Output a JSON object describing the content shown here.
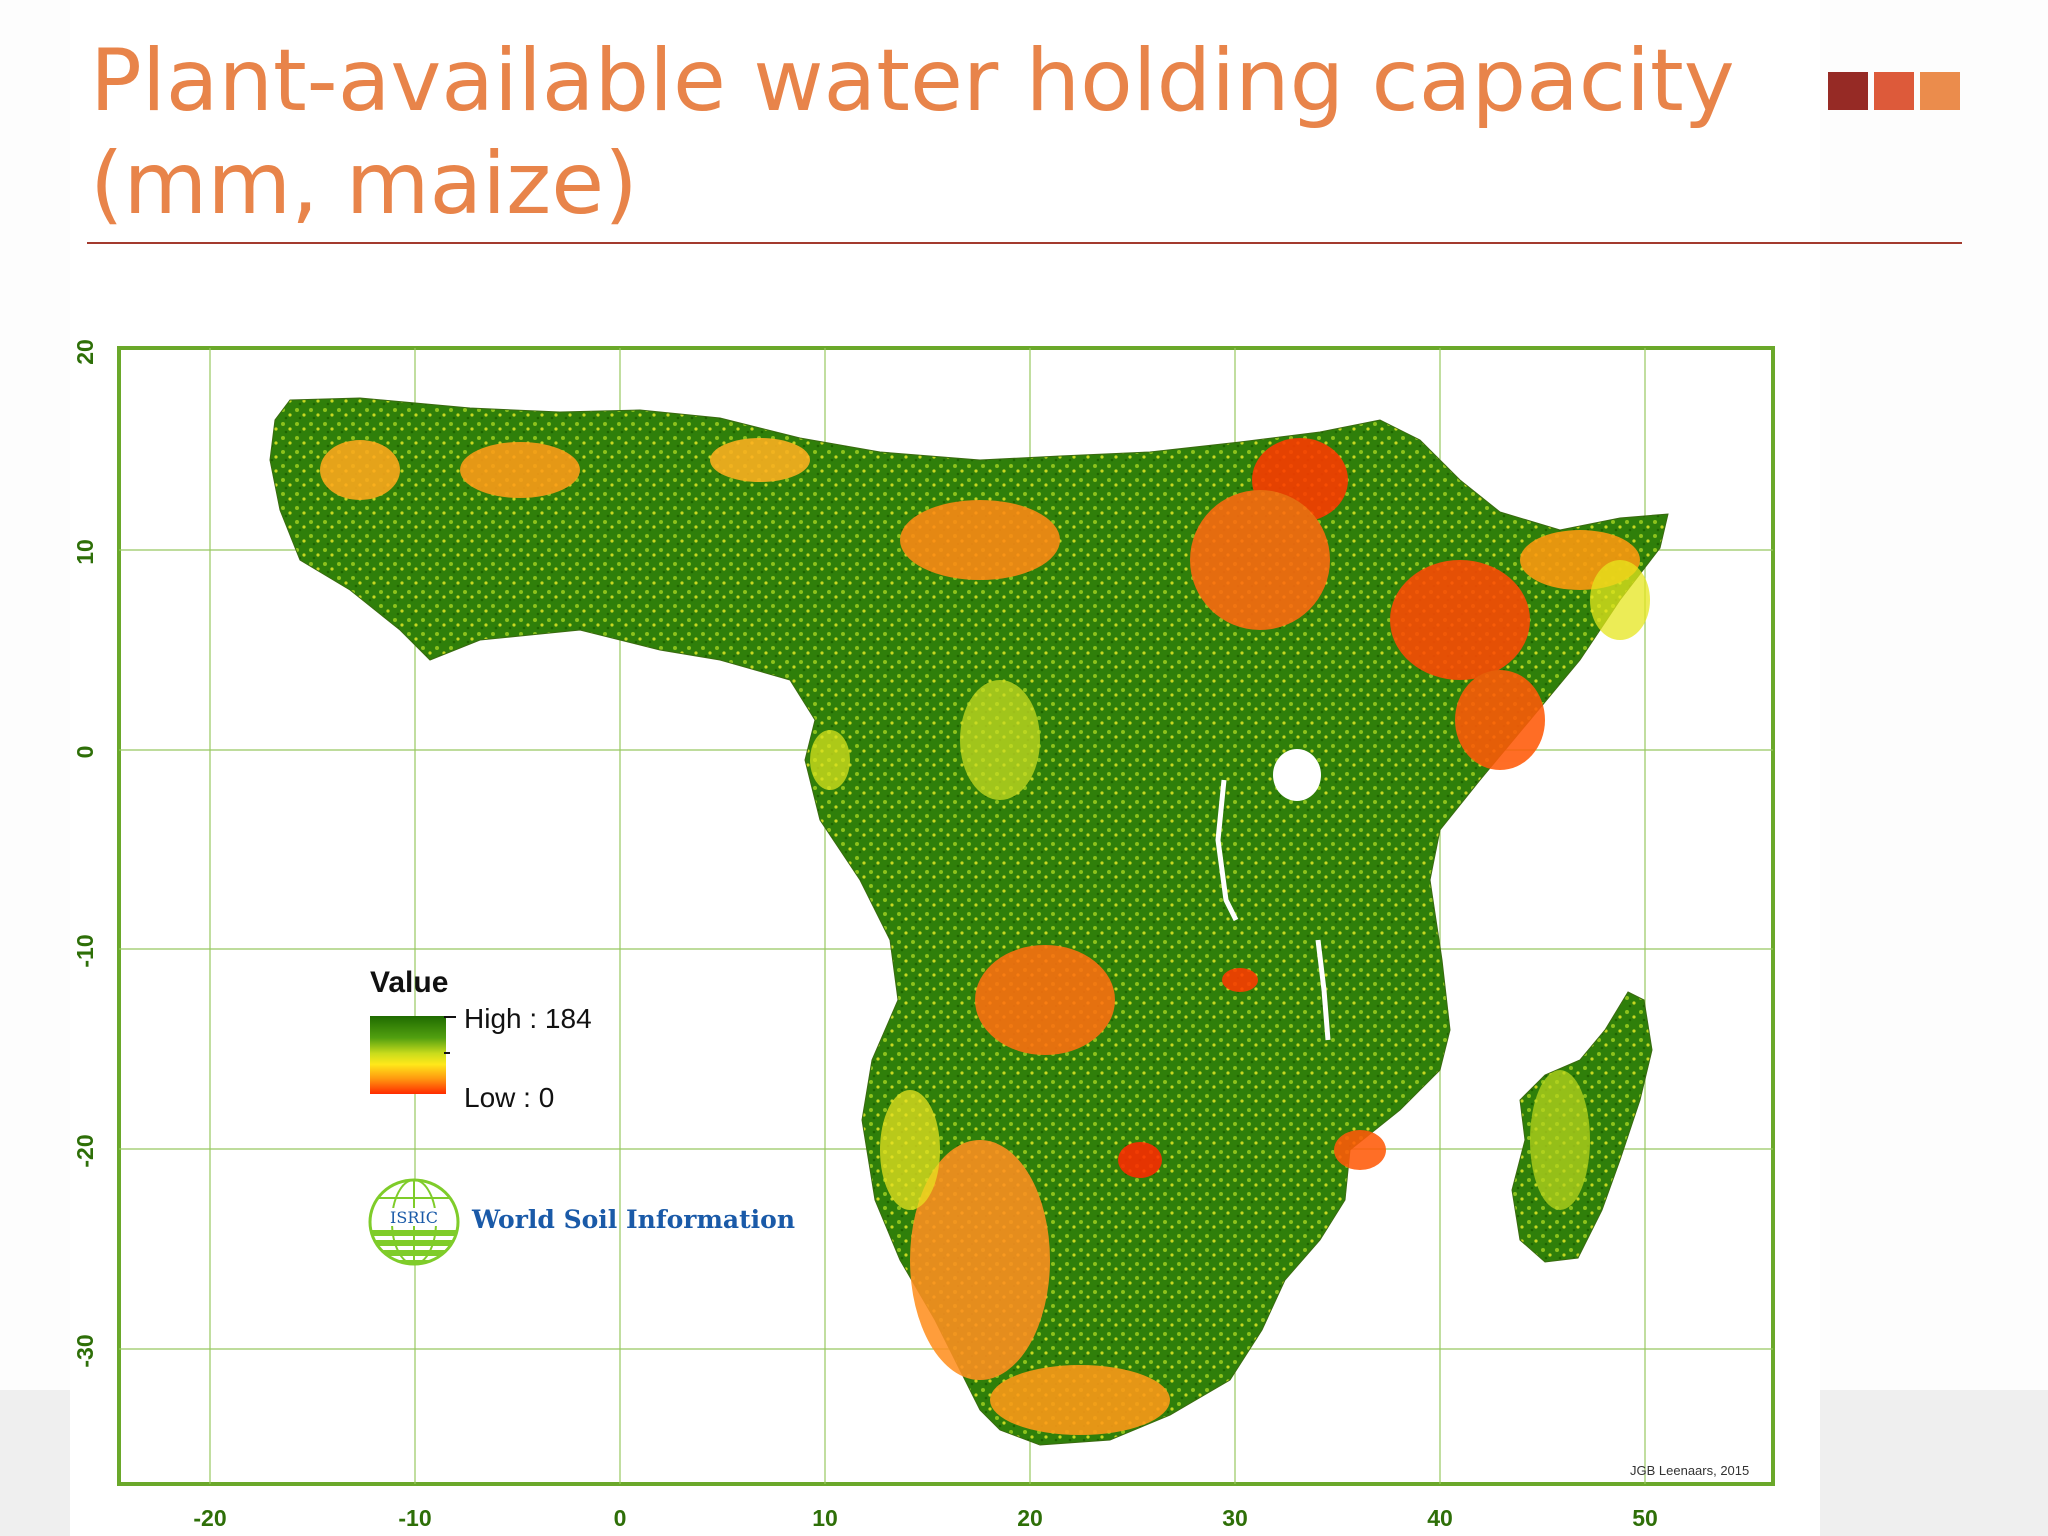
{
  "slide": {
    "title": "Plant-available water holding capacity (mm, maize)",
    "accent_colors": [
      "#962a25",
      "#dd5a3a",
      "#eb8c4c"
    ],
    "title_color": "#e8844a"
  },
  "map": {
    "y_ticks": [
      "20",
      "10",
      "0",
      "-10",
      "-20",
      "-30"
    ],
    "x_ticks": [
      "-20",
      "-10",
      "0",
      "10",
      "20",
      "30",
      "40",
      "50"
    ],
    "frame_color": "#6aa82a",
    "grid_color": "#98c860"
  },
  "legend": {
    "title": "Value",
    "high_label": "High : 184",
    "low_label": "Low : 0",
    "color_high": "#1f6b00",
    "color_mid": "#ffe81a",
    "color_low": "#ff2a00"
  },
  "logo": {
    "icon": "globe-icon",
    "acronym": "ISRIC",
    "org_name": "World Soil Information"
  },
  "credit": "JGB Leenaars, 2015"
}
